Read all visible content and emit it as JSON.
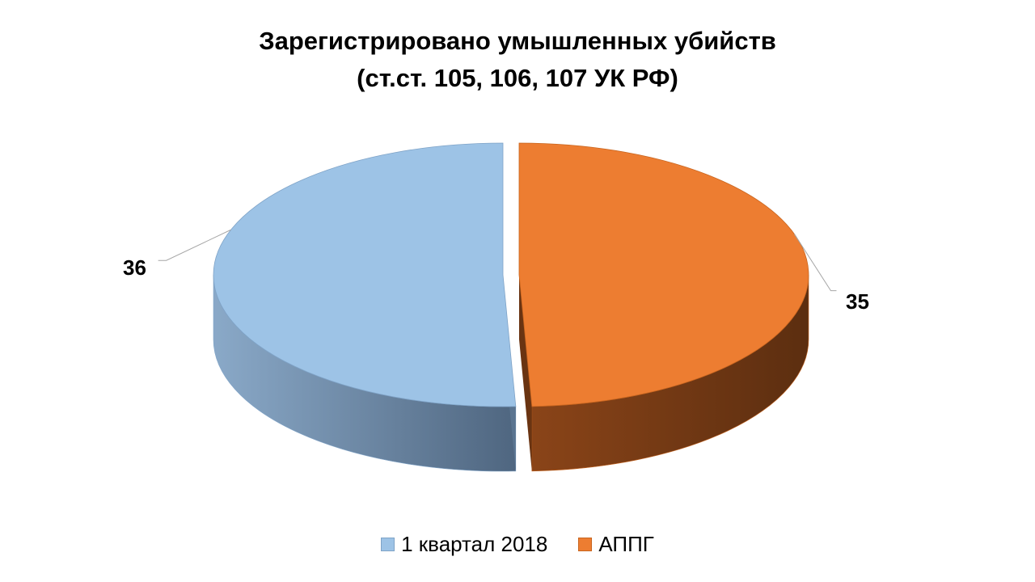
{
  "chart_data": {
    "type": "pie",
    "title_lines": [
      "Зарегистрировано  умышленных убийств",
      "(ст.ст. 105, 106, 107 УК РФ)"
    ],
    "categories": [
      "1 квартал 2018",
      "АППГ"
    ],
    "values": [
      36,
      35
    ],
    "data_labels": [
      "36",
      "35"
    ],
    "colors": [
      "#9DC3E6",
      "#ED7D31"
    ],
    "legend": {
      "placement": "bottom"
    },
    "style": "3d-exploded"
  }
}
